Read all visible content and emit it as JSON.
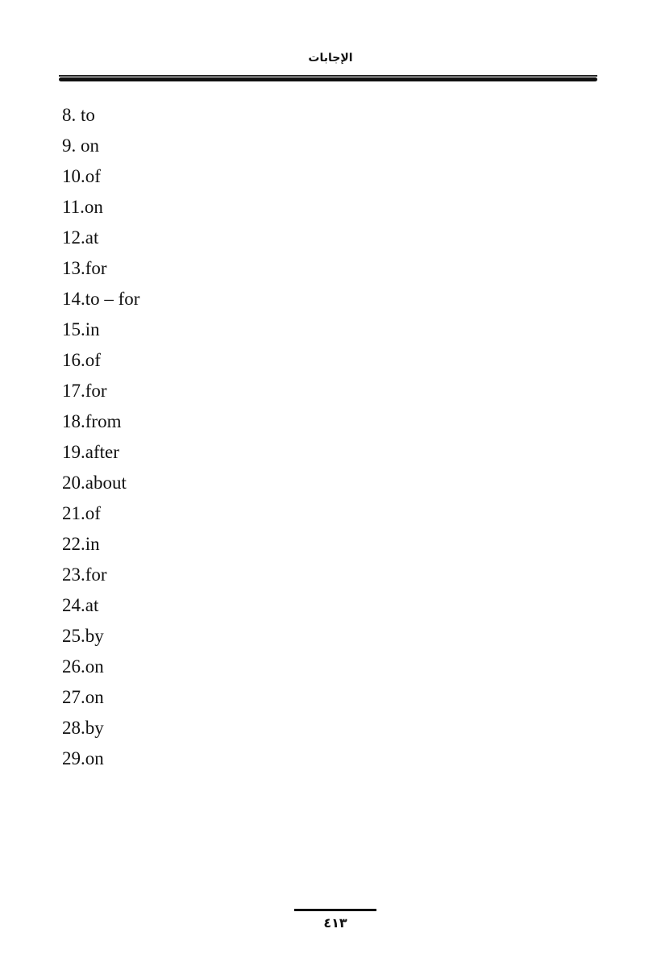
{
  "header": {
    "title": "الإجابات"
  },
  "answers": [
    "8. to",
    "9. on",
    "10.of",
    "11.on",
    "12.at",
    "13.for",
    "14.to – for",
    "15.in",
    "16.of",
    "17.for",
    "18.from",
    "19.after",
    "20.about",
    "21.of",
    "22.in",
    "23.for",
    "24.at",
    "25.by",
    "26.on",
    "27.on",
    "28.by",
    "29.on"
  ],
  "footer": {
    "page_number": "٤١٣"
  }
}
